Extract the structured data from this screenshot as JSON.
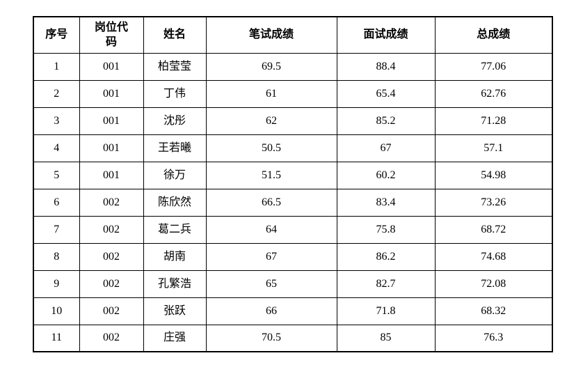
{
  "table": {
    "columns": [
      {
        "key": "serial-number",
        "label": "序号"
      },
      {
        "key": "position-code",
        "label": "岗位代码"
      },
      {
        "key": "name",
        "label": "姓名"
      },
      {
        "key": "written-score",
        "label": "笔试成绩"
      },
      {
        "key": "interview-score",
        "label": "面试成绩"
      },
      {
        "key": "total-score",
        "label": "总成绩"
      }
    ],
    "rows": [
      [
        "1",
        "001",
        "柏莹莹",
        "69.5",
        "88.4",
        "77.06"
      ],
      [
        "2",
        "001",
        "丁伟",
        "61",
        "65.4",
        "62.76"
      ],
      [
        "3",
        "001",
        "沈彤",
        "62",
        "85.2",
        "71.28"
      ],
      [
        "4",
        "001",
        "王若曦",
        "50.5",
        "67",
        "57.1"
      ],
      [
        "5",
        "001",
        "徐万",
        "51.5",
        "60.2",
        "54.98"
      ],
      [
        "6",
        "002",
        "陈欣然",
        "66.5",
        "83.4",
        "73.26"
      ],
      [
        "7",
        "002",
        "葛二兵",
        "64",
        "75.8",
        "68.72"
      ],
      [
        "8",
        "002",
        "胡南",
        "67",
        "86.2",
        "74.68"
      ],
      [
        "9",
        "002",
        "孔繁浩",
        "65",
        "82.7",
        "72.08"
      ],
      [
        "10",
        "002",
        "张跃",
        "66",
        "71.8",
        "68.32"
      ],
      [
        "11",
        "002",
        "庄强",
        "70.5",
        "85",
        "76.3"
      ]
    ],
    "colors": {
      "border": "#000000",
      "text": "#000000",
      "background": "#ffffff"
    }
  }
}
